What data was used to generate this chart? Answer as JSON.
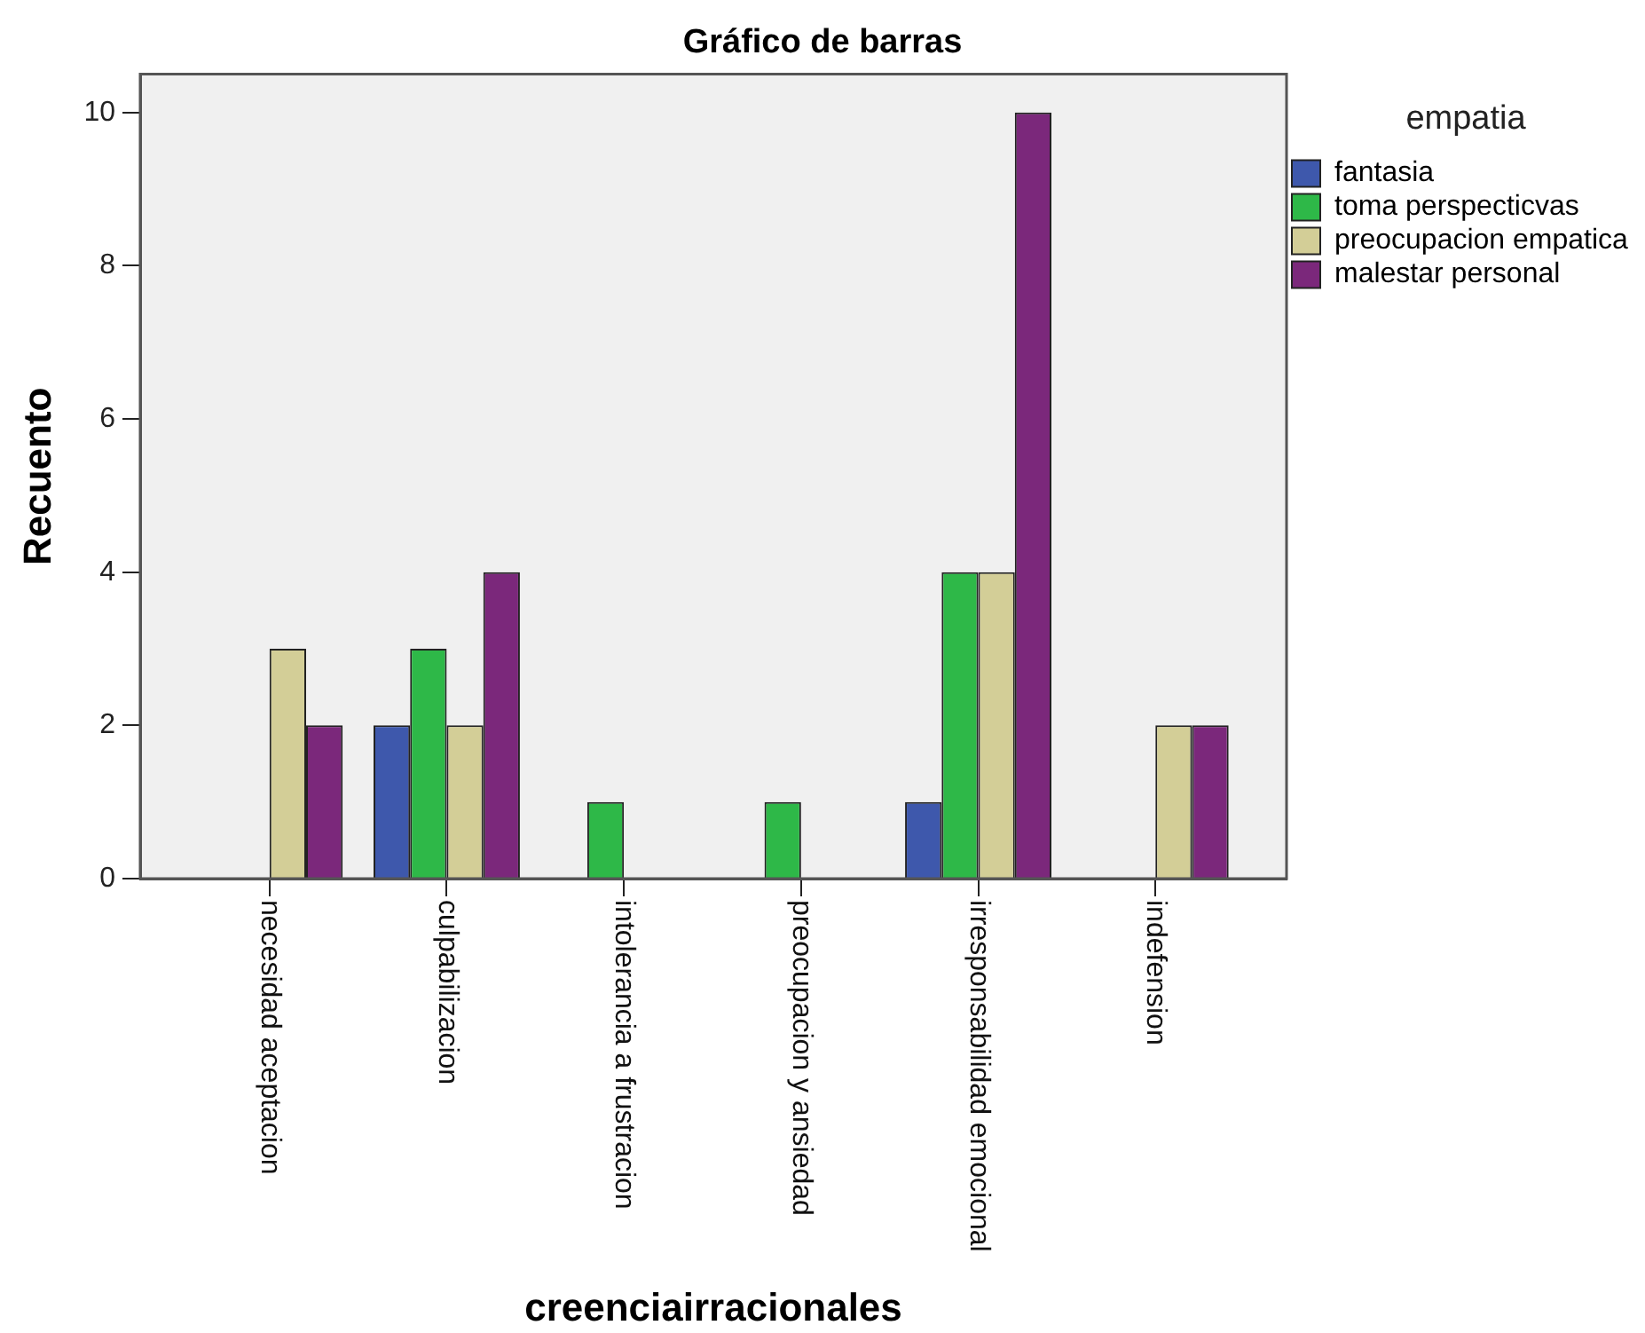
{
  "chart_data": {
    "type": "bar",
    "title": "Gráfico de barras",
    "xlabel": "creenciairracionales",
    "ylabel": "Recuento",
    "legend_title": "empatia",
    "categories": [
      "necesidad aceptacion",
      "culpabilizacion",
      "intolerancia a frustracion",
      "preocupacion y ansiedad",
      "irresponsabilidad emocional",
      "indefension"
    ],
    "series": [
      {
        "name": "fantasia",
        "color": "#3e58ac",
        "values": [
          null,
          2,
          null,
          null,
          1,
          null
        ]
      },
      {
        "name": "toma perspecticvas",
        "color": "#2eb848",
        "values": [
          null,
          3,
          1,
          1,
          4,
          null
        ]
      },
      {
        "name": "preocupacion empatica",
        "color": "#d3ce97",
        "values": [
          3,
          2,
          null,
          null,
          4,
          2
        ]
      },
      {
        "name": "malestar personal",
        "color": "#7b287b",
        "values": [
          2,
          4,
          null,
          null,
          10,
          2
        ]
      }
    ],
    "ylim": [
      0,
      10.5
    ],
    "yticks": [
      0,
      2,
      4,
      6,
      8,
      10
    ],
    "legend": "top right"
  }
}
